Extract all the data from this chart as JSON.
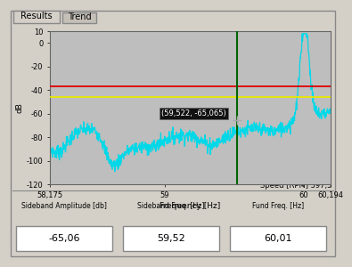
{
  "xlim": [
    58.175,
    60.194
  ],
  "ylim": [
    -120,
    10
  ],
  "yticks": [
    10,
    0,
    -20,
    -40,
    -60,
    -80,
    -100,
    -120
  ],
  "xticks": [
    58.175,
    59,
    60,
    60.194
  ],
  "xticklabels": [
    "58,175",
    "59",
    "60",
    "60,194"
  ],
  "xlabel": "Frequency [Hz]",
  "ylabel": "dB",
  "red_line_y": -37,
  "yellow_line_y": -46,
  "green_vline_x": 59.522,
  "cursor_x": 59.522,
  "cursor_y": -65.065,
  "cursor_label": "(59,522, -65,065)",
  "speed_label": "Speed [RPM] 597,5",
  "sideband_amp_label": "Sideband Amplitude [db]",
  "sideband_amp_value": "-65,06",
  "sideband_freq_label": "Sideband Freq. [Hz]",
  "sideband_freq_value": "59,52",
  "fund_freq_label": "Fund Freq. [Hz]",
  "fund_freq_value": "60,01",
  "tab1": "Results",
  "tab2": "Trend",
  "plot_bg": "#bebebe",
  "outer_bg": "#d4d0c8",
  "line_color": "#00d8e8",
  "red_color": "#e00000",
  "yellow_color": "#e8e800",
  "green_color": "#006400"
}
